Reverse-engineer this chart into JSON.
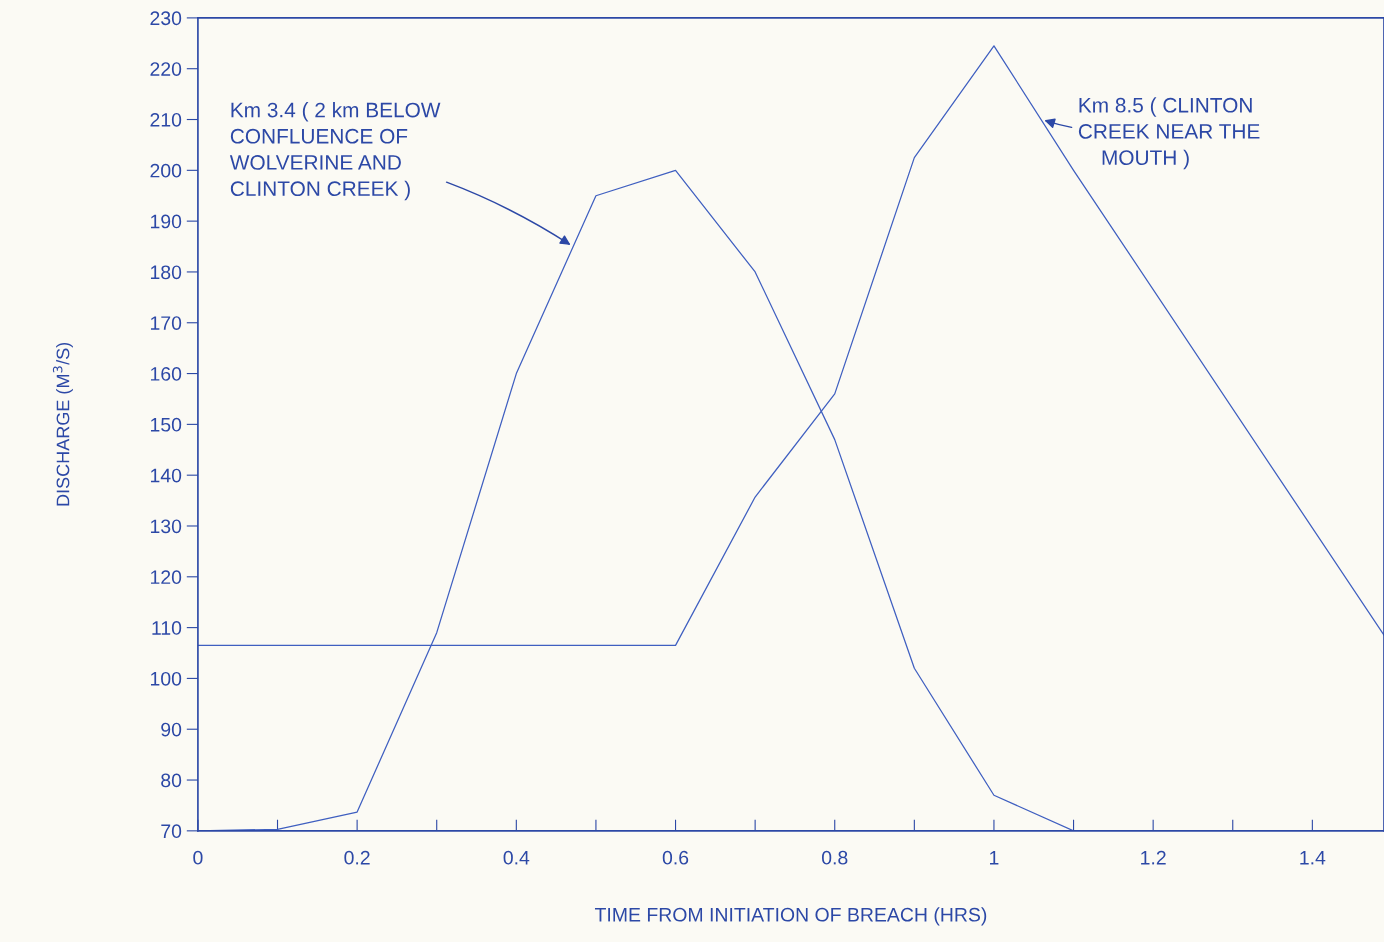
{
  "chart_data": {
    "type": "line",
    "xlabel": "TIME FROM INITIATION OF BREACH (HRS)",
    "ylabel": "DISCHARGE (M$^{3}$/S)",
    "series": [
      {
        "color": "#3f5fc0",
        "x": [
          0,
          0.1,
          0.2,
          0.3,
          0.4,
          0.5,
          0.6,
          0.7,
          0.8,
          0.9,
          1.0,
          1.1,
          1.49
        ],
        "values": [
          70,
          70.3,
          73.7,
          109,
          160,
          195,
          200,
          180,
          147,
          102,
          77,
          70,
          70
        ]
      },
      {
        "color": "#3f5fc0",
        "x": [
          0,
          0.6,
          0.7,
          0.8,
          0.9,
          1.0,
          1.1,
          1.49
        ],
        "values": [
          106.5,
          106.5,
          135.7,
          156,
          202.5,
          224.5,
          200,
          108.5
        ]
      }
    ],
    "xlim": [
      0,
      1.49
    ],
    "ylim": [
      70,
      230
    ],
    "xticks": [
      0,
      {
        "value": 0.1,
        "label": null
      },
      0.2,
      {
        "value": 0.3,
        "label": null
      },
      0.4,
      {
        "value": 0.5,
        "label": null
      },
      0.6,
      {
        "value": 0.7,
        "label": null
      },
      0.8,
      {
        "value": 0.9,
        "label": null
      },
      1,
      {
        "value": 1.1,
        "label": null
      },
      1.2,
      {
        "value": 1.3,
        "label": null
      },
      1.4
    ],
    "yticks": [
      70,
      80,
      90,
      100,
      110,
      120,
      130,
      140,
      150,
      160,
      170,
      180,
      190,
      200,
      210,
      220,
      230
    ],
    "grid": false,
    "marker": "none",
    "line_style": "solid",
    "annotations": [
      {
        "text": "Km 3.4 ( 2 km BELOW\nCONFLUENCE OF\nWOLVERINE AND\nCLINTON CREEK )",
        "x": 0.471,
        "y": 185
      },
      {
        "text": "Km 8.5 ( CLINTON\nCREEK NEAR THE\n    MOUTH )",
        "x": 1.06,
        "y": 210
      }
    ]
  }
}
